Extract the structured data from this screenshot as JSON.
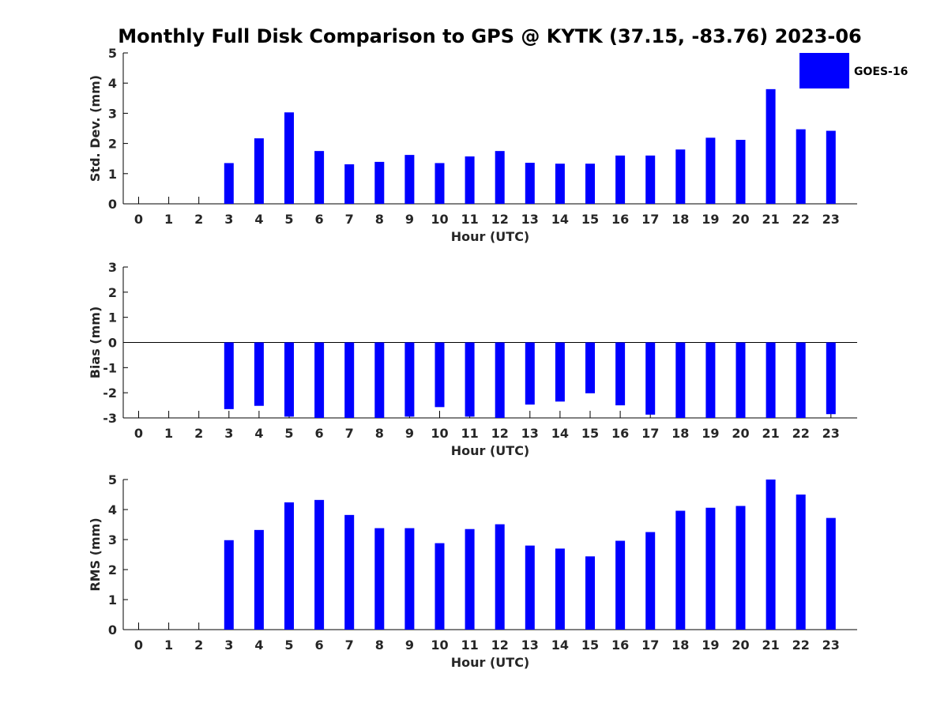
{
  "title": "Monthly Full Disk Comparison to GPS @ KYTK (37.15, -83.76) 2023-06",
  "legend": {
    "label": "GOES-16",
    "color": "#0000ff"
  },
  "chart_data": [
    {
      "type": "bar",
      "categories": [
        "0",
        "1",
        "2",
        "3",
        "4",
        "5",
        "6",
        "7",
        "8",
        "9",
        "10",
        "11",
        "12",
        "13",
        "14",
        "15",
        "16",
        "17",
        "18",
        "19",
        "20",
        "21",
        "22",
        "23"
      ],
      "xlabel": "Hour (UTC)",
      "ylabel": "Std. Dev. (mm)",
      "ylim": [
        0,
        5
      ],
      "yticks": [
        "0",
        "1",
        "2",
        "3",
        "4",
        "5"
      ],
      "series": [
        {
          "name": "GOES-16",
          "values": [
            null,
            null,
            null,
            1.35,
            2.17,
            3.03,
            1.75,
            1.31,
            1.39,
            1.62,
            1.35,
            1.57,
            1.75,
            1.36,
            1.33,
            1.33,
            1.6,
            1.6,
            1.8,
            2.19,
            2.12,
            3.8,
            2.47,
            2.42
          ]
        }
      ]
    },
    {
      "type": "bar",
      "categories": [
        "0",
        "1",
        "2",
        "3",
        "4",
        "5",
        "6",
        "7",
        "8",
        "9",
        "10",
        "11",
        "12",
        "13",
        "14",
        "15",
        "16",
        "17",
        "18",
        "19",
        "20",
        "21",
        "22",
        "23"
      ],
      "xlabel": "Hour (UTC)",
      "ylabel": "Bias (mm)",
      "ylim": [
        -3,
        3
      ],
      "yticks": [
        "-3",
        "-2",
        "-1",
        "0",
        "1",
        "2",
        "3"
      ],
      "series": [
        {
          "name": "GOES-16",
          "values": [
            null,
            null,
            null,
            -2.65,
            -2.52,
            -2.95,
            -3.0,
            -3.0,
            -3.0,
            -2.95,
            -2.57,
            -2.95,
            -3.0,
            -2.47,
            -2.35,
            -2.02,
            -2.5,
            -2.87,
            -3.0,
            -3.0,
            -3.0,
            -3.0,
            -3.0,
            -2.85
          ]
        }
      ]
    },
    {
      "type": "bar",
      "categories": [
        "0",
        "1",
        "2",
        "3",
        "4",
        "5",
        "6",
        "7",
        "8",
        "9",
        "10",
        "11",
        "12",
        "13",
        "14",
        "15",
        "16",
        "17",
        "18",
        "19",
        "20",
        "21",
        "22",
        "23"
      ],
      "xlabel": "Hour (UTC)",
      "ylabel": "RMS (mm)",
      "ylim": [
        0,
        5
      ],
      "yticks": [
        "0",
        "1",
        "2",
        "3",
        "4",
        "5"
      ],
      "series": [
        {
          "name": "GOES-16",
          "values": [
            null,
            null,
            null,
            2.98,
            3.32,
            4.24,
            4.32,
            3.82,
            3.38,
            3.38,
            2.88,
            3.35,
            3.51,
            2.8,
            2.7,
            2.44,
            2.96,
            3.25,
            3.96,
            4.06,
            4.12,
            5.0,
            4.5,
            3.72
          ]
        }
      ]
    }
  ]
}
